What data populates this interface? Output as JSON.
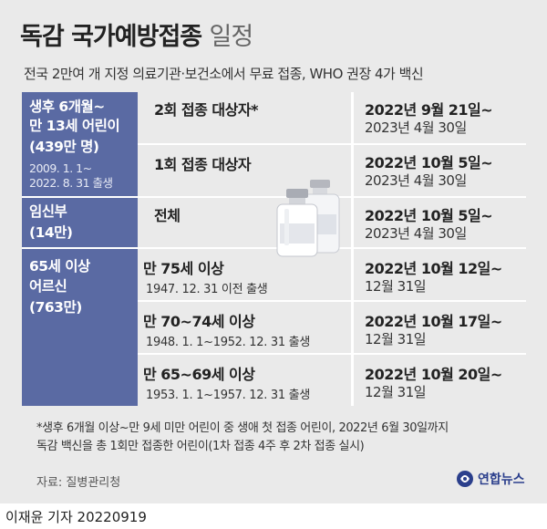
{
  "header": {
    "title_bold": "독감 국가예방접종",
    "title_light": "일정",
    "subtitle": "전국 2만여 개 지정 의료기관·보건소에서 무료 접종, WHO 권장 4가 백신"
  },
  "groups": [
    {
      "name_line1": "생후 6개월~",
      "name_line2": "만 13세 어린이",
      "count": "(439만 명)",
      "range_line1": "2009. 1. 1~",
      "range_line2": "2022. 8. 31 출생",
      "rows": [
        {
          "target": "2회 접종 대상자*",
          "date_main": "2022년 9월 21일~",
          "date_sub": "2023년 4월 30일"
        },
        {
          "target": "1회 접종 대상자",
          "date_main": "2022년 10월 5일~",
          "date_sub": "2023년 4월 30일"
        }
      ]
    },
    {
      "name_line1": "임신부",
      "count": "(14만)",
      "rows": [
        {
          "target": "전체",
          "date_main": "2022년 10월 5일~",
          "date_sub": "2023년 4월 30일"
        }
      ]
    },
    {
      "name_line1": "65세 이상",
      "name_line2": "어르신",
      "count": "(763만)",
      "rows": [
        {
          "target": "만 75세 이상",
          "target_sub": "1947. 12. 31 이전 출생",
          "date_main": "2022년 10월 12일~",
          "date_sub": "12월 31일"
        },
        {
          "target": "만 70~74세 이상",
          "target_sub": "1948. 1. 1~1952. 12. 31 출생",
          "date_main": "2022년 10월 17일~",
          "date_sub": "12월 31일"
        },
        {
          "target": "만 65~69세 이상",
          "target_sub": "1953. 1. 1~1957. 12. 31 출생",
          "date_main": "2022년 10월 20일~",
          "date_sub": "12월 31일"
        }
      ]
    }
  ],
  "footnote": {
    "line1": "*생후 6개월 이상~만 9세 미만 어린이 중 생애 첫 접종 어린이, 2022년 6월 30일까지",
    "line2": "독감 백신을 총 1회만 접종한 어린이(1차 접종 4주 후 2차 접종 실시)"
  },
  "source": "자료: 질병관리청",
  "logo": {
    "text": "연합뉴스",
    "brand_color": "#2b3f8c",
    "icon": "yonhap-logo-icon"
  },
  "byline": "이재윤 기자  20220919",
  "colors": {
    "group_column": "#5a6aa3",
    "background": "#eaeaea"
  }
}
